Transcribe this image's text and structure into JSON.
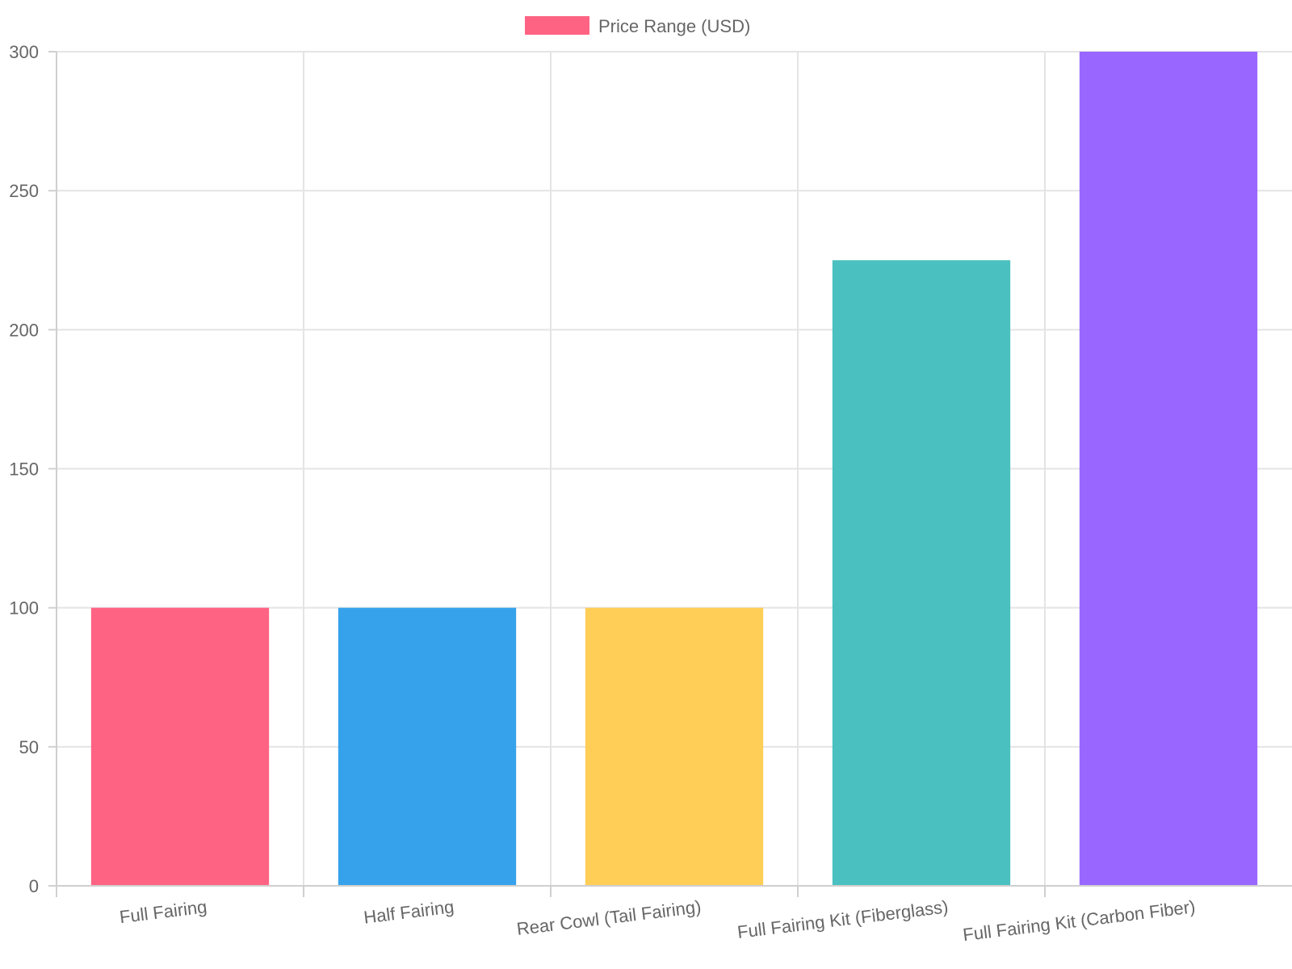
{
  "chart_data": {
    "type": "bar",
    "categories": [
      "Full Fairing",
      "Half Fairing",
      "Rear Cowl (Tail Fairing)",
      "Full Fairing Kit (Fiberglass)",
      "Full Fairing Kit (Carbon Fiber)"
    ],
    "series": [
      {
        "name": "Price Range (USD)",
        "values": [
          100,
          100,
          100,
          225,
          300
        ]
      }
    ],
    "bar_colors": [
      "#ff6384",
      "#36a2eb",
      "#ffce56",
      "#4bc0c0",
      "#9966ff"
    ],
    "legend_swatch_color": "#ff6384",
    "yticks": [
      "0",
      "50",
      "100",
      "150",
      "200",
      "250",
      "300"
    ],
    "ylim": [
      0,
      300
    ],
    "grid": true,
    "legend_position": "top"
  }
}
